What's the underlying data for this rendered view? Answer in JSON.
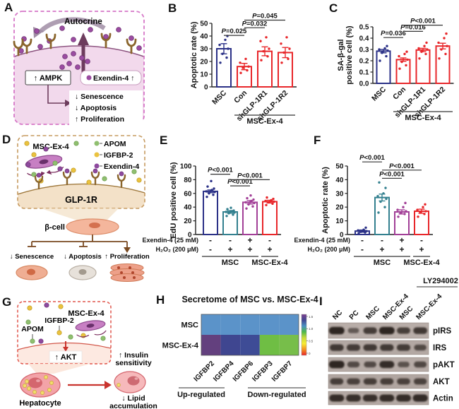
{
  "panels": {
    "A": {
      "label": "A",
      "autocrine": "Autocrine",
      "ampk": "↑ AMPK",
      "exendin": "Exendin-4 ↑",
      "effects": [
        "↓ Senescence",
        "↓ Apoptosis",
        "↑ Proliferation"
      ],
      "dot_color": "#9b4ca1",
      "border_color": "#d678c8"
    },
    "B": {
      "label": "B"
    },
    "C": {
      "label": "C"
    },
    "D": {
      "label": "D",
      "msc_label": "MSC-Ex-4",
      "legend": [
        {
          "name": "APOM",
          "color": "#8fbf6f"
        },
        {
          "name": "IGFBP-2",
          "color": "#eac23f"
        },
        {
          "name": "Exendin-4",
          "color": "#8e4a9e"
        }
      ],
      "receptor": "GLP-1R",
      "beta_cell": "β-cell",
      "effects": [
        "↓ Senescence",
        "↓ Apoptosis",
        "↑ Proliferation"
      ]
    },
    "E": {
      "label": "E"
    },
    "F": {
      "label": "F"
    },
    "G": {
      "label": "G",
      "msc_label": "MSC-Ex-4",
      "igfbp2": "IGFBP-2",
      "apom": "APOM",
      "akt": "↑ AKT",
      "hepatocyte": "Hepatocyte",
      "insulin_line1": "↑ Insulin",
      "insulin_line2": "sensitivity",
      "lipid_line1": "↓ Lipid",
      "lipid_line2": "accumulation"
    },
    "H": {
      "label": "H"
    },
    "I": {
      "label": "I",
      "treatment": "LY294002",
      "lanes": [
        "NC",
        "PC",
        "MSC",
        "MSC-Ex-4",
        "MSC",
        "MSC-Ex-4"
      ],
      "rows": [
        {
          "label": "pIRS",
          "intensities": [
            1.0,
            0.3,
            0.7,
            1.0,
            0.65,
            0.75
          ]
        },
        {
          "label": "IRS",
          "intensities": [
            0.75,
            0.7,
            0.72,
            0.72,
            0.7,
            0.5
          ]
        },
        {
          "label": "pAKT",
          "intensities": [
            1.0,
            0.5,
            0.5,
            0.9,
            0.4,
            0.55
          ]
        },
        {
          "label": "AKT",
          "intensities": [
            0.65,
            0.62,
            0.65,
            0.65,
            0.62,
            0.6
          ]
        },
        {
          "label": "Actin",
          "intensities": [
            0.9,
            0.88,
            0.85,
            0.9,
            0.9,
            0.92
          ]
        }
      ]
    }
  },
  "chart_data": [
    {
      "panel": "B",
      "type": "bar",
      "ylabel": "Apoptotic rate (%)",
      "ylim": [
        0,
        50
      ],
      "yticks": [
        0,
        10,
        20,
        30,
        40,
        50
      ],
      "ytick_labels": [
        "0",
        "10",
        "20",
        "30",
        "40",
        "50"
      ],
      "categories": [
        "MSC",
        "Con",
        "shGLP-1R1",
        "shGLP-1R2"
      ],
      "values": [
        30,
        16,
        28,
        27
      ],
      "errors": [
        4,
        2.5,
        3.5,
        4
      ],
      "bar_colors": [
        "#2b3187",
        "#e8262a",
        "#e8262a",
        "#e8262a"
      ],
      "points": [
        [
          19,
          23,
          26,
          30,
          33,
          37,
          40
        ],
        [
          11,
          13,
          15,
          16,
          19,
          22
        ],
        [
          21,
          24,
          28,
          30,
          36,
          39
        ],
        [
          19,
          22,
          27,
          30,
          34,
          39
        ]
      ],
      "significance": [
        {
          "a": 0,
          "b": 1,
          "y": 40.5,
          "label": "P=0.025"
        },
        {
          "a": 1,
          "b": 2,
          "y": 46.5,
          "label": "P=0.032"
        },
        {
          "a": 1,
          "b": 3,
          "y": 52.5,
          "label": "P=0.045"
        }
      ],
      "groups": [
        {
          "label": "MSC-Ex-4",
          "from": 1,
          "to": 3
        }
      ]
    },
    {
      "panel": "C",
      "type": "bar",
      "ylabel": [
        "SA-β-gal",
        "positive cell (%)"
      ],
      "ylim": [
        0,
        0.5
      ],
      "yticks": [
        0,
        0.1,
        0.2,
        0.3,
        0.4,
        0.5
      ],
      "ytick_labels": [
        "0.0",
        "0.1",
        "0.2",
        "0.3",
        "0.4",
        "0.5"
      ],
      "categories": [
        "MSC",
        "Con",
        "shGLP-1R1",
        "shGLP-1R2"
      ],
      "values": [
        0.285,
        0.21,
        0.295,
        0.33
      ],
      "errors": [
        0.015,
        0.015,
        0.015,
        0.025
      ],
      "bar_colors": [
        "#2b3187",
        "#e8262a",
        "#e8262a",
        "#e8262a"
      ],
      "points": [
        [
          0.2,
          0.24,
          0.27,
          0.29,
          0.3,
          0.31,
          0.33
        ],
        [
          0.13,
          0.16,
          0.19,
          0.21,
          0.24,
          0.26,
          0.28
        ],
        [
          0.22,
          0.26,
          0.28,
          0.3,
          0.31,
          0.33,
          0.36
        ],
        [
          0.22,
          0.26,
          0.3,
          0.33,
          0.36,
          0.4,
          0.44
        ]
      ],
      "significance": [
        {
          "a": 0,
          "b": 1,
          "y": 0.405,
          "label": "P=0.036"
        },
        {
          "a": 1,
          "b": 2,
          "y": 0.46,
          "label": "P=0.016"
        },
        {
          "a": 1,
          "b": 3,
          "y": 0.515,
          "label": "P<0.001"
        }
      ],
      "groups": [
        {
          "label": "MSC-Ex-4",
          "from": 1,
          "to": 3
        }
      ]
    },
    {
      "panel": "E",
      "type": "bar",
      "ylabel": "EdU positive cell (%)",
      "ylim": [
        0,
        100
      ],
      "yticks": [
        0,
        20,
        40,
        60,
        80,
        100
      ],
      "ytick_labels": [
        "0",
        "20",
        "40",
        "60",
        "80",
        "100"
      ],
      "values": [
        63,
        33,
        47,
        48
      ],
      "errors": [
        2,
        2,
        2.5,
        2
      ],
      "bar_colors": [
        "#2b3187",
        "#33808f",
        "#a23f97",
        "#e8262a"
      ],
      "points": [
        [
          55,
          58,
          60,
          62,
          63,
          65,
          67,
          70,
          78
        ],
        [
          27,
          29,
          31,
          32,
          33,
          34,
          35,
          37,
          39
        ],
        [
          38,
          41,
          44,
          46,
          47,
          49,
          51,
          53,
          57
        ],
        [
          43,
          45,
          47,
          48,
          49,
          50,
          52,
          54
        ]
      ],
      "significance": [
        {
          "a": 0,
          "b": 1,
          "y": 88,
          "label": "P<0.001"
        },
        {
          "a": 1,
          "b": 2,
          "y": 71,
          "label": "P<0.001"
        },
        {
          "a": 1,
          "b": 3,
          "y": 80,
          "label": "P<0.001"
        }
      ],
      "condition_rows": [
        {
          "label": "Exendin-4 (25 mM)",
          "values": [
            "-",
            "-",
            "+",
            "-"
          ]
        },
        {
          "label": "H₂O₂ (200 μM)",
          "values": [
            "-",
            "+",
            "+",
            "+"
          ]
        }
      ],
      "groups": [
        {
          "label": "MSC",
          "from": 0,
          "to": 2
        },
        {
          "label": "MSC-Ex-4",
          "from": 3,
          "to": 3
        }
      ]
    },
    {
      "panel": "F",
      "type": "bar",
      "ylabel": "Apoptotic rate (%)",
      "ylim": [
        0,
        50
      ],
      "yticks": [
        0,
        10,
        20,
        30,
        40,
        50
      ],
      "ytick_labels": [
        "0",
        "10",
        "20",
        "30",
        "40",
        "50"
      ],
      "values": [
        2.5,
        27,
        16.5,
        17
      ],
      "errors": [
        0.8,
        2.5,
        1.5,
        1.5
      ],
      "bar_colors": [
        "#2b3187",
        "#33808f",
        "#a23f97",
        "#e8262a"
      ],
      "points": [
        [
          1,
          1.5,
          2,
          2.5,
          3,
          3.5,
          5
        ],
        [
          16,
          20,
          24,
          26,
          28,
          30,
          34,
          38
        ],
        [
          13,
          15,
          16,
          17,
          18,
          20,
          23
        ],
        [
          13,
          15,
          16,
          17,
          18,
          20,
          22
        ]
      ],
      "significance": [
        {
          "a": 0,
          "b": 1,
          "y": 53,
          "label": "P<0.001"
        },
        {
          "a": 1,
          "b": 2,
          "y": 41,
          "label": "P<0.001"
        },
        {
          "a": 1,
          "b": 3,
          "y": 47,
          "label": "P<0.001"
        }
      ],
      "condition_rows": [
        {
          "label": "Exendin-4 (25 mM)",
          "values": [
            "-",
            "-",
            "+",
            "-"
          ]
        },
        {
          "label": "H₂O₂ (200 μM)",
          "values": [
            "-",
            "+",
            "+",
            "+"
          ]
        }
      ],
      "groups": [
        {
          "label": "MSC",
          "from": 0,
          "to": 2
        },
        {
          "label": "MSC-Ex-4",
          "from": 3,
          "to": 3
        }
      ]
    },
    {
      "panel": "H",
      "type": "heatmap",
      "title": "Secretome of MSC vs. MSC-Ex-4",
      "rows": [
        "MSC",
        "MSC-Ex-4"
      ],
      "columns": [
        "IGFBP2",
        "IGFBP4",
        "IGFBP6",
        "IGFBP3",
        "IGFBP7"
      ],
      "cell_colors": [
        [
          "#5b93c9",
          "#5b93c9",
          "#5b93c9",
          "#5b93c9",
          "#5b93c9"
        ],
        [
          "#63407e",
          "#3f4690",
          "#3e4c96",
          "#6fbe44",
          "#77be4a"
        ]
      ],
      "values_approx": [
        [
          0.9,
          0.9,
          0.9,
          0.9,
          0.9
        ],
        [
          1.4,
          1.3,
          1.3,
          0.55,
          0.5
        ]
      ],
      "colorbar": {
        "ticks": [
          "1.5",
          "1.0",
          "0.5",
          "0"
        ],
        "gradient": [
          "#7b3f8f",
          "#414691",
          "#4a90c4",
          "#4db848",
          "#c8da3a",
          "#f7ec33",
          "#f59120",
          "#e8262a"
        ]
      },
      "group_annotations": [
        {
          "label": "Up-regulated",
          "from": 0,
          "to": 1
        },
        {
          "label": "Down-regulated",
          "from": 3,
          "to": 4
        }
      ]
    }
  ]
}
